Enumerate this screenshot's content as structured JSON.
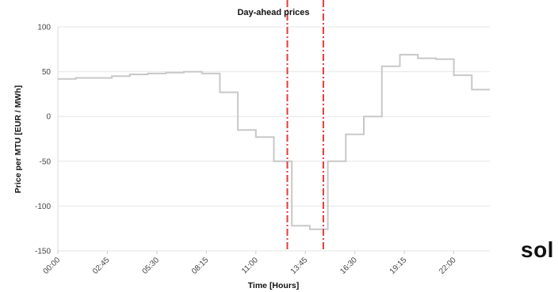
{
  "chart_data": {
    "type": "line",
    "title": "Day-ahead prices",
    "xlabel": "Time [Hours]",
    "ylabel": "Price per MTU [EUR / MWh]",
    "ylim": [
      -150,
      100
    ],
    "xlim_hours": [
      0,
      24
    ],
    "yticks": [
      100,
      50,
      0,
      -50,
      -100,
      -150
    ],
    "xtick_labels": [
      "00:00",
      "02:45",
      "05:30",
      "08:15",
      "11:00",
      "13:45",
      "16:30",
      "19:15",
      "22:00"
    ],
    "xtick_hours": [
      0,
      2.75,
      5.5,
      8.25,
      11,
      13.75,
      16.5,
      19.25,
      22
    ],
    "grid": true,
    "step": true,
    "series": [
      {
        "color": "#c8c8c8",
        "x_hours": [
          0,
          1,
          2,
          3,
          4,
          5,
          6,
          7,
          8,
          9,
          10,
          11,
          12,
          13,
          14,
          15,
          16,
          17,
          18,
          19,
          20,
          21,
          22,
          23
        ],
        "values": [
          42,
          43,
          43,
          45,
          47,
          48,
          49,
          50,
          48,
          27,
          -15,
          -23,
          -50,
          -122,
          -126,
          -50,
          -20,
          0,
          56,
          69,
          65,
          64,
          46,
          30
        ]
      }
    ],
    "highlight_lines": {
      "color": "#e63b3b",
      "style": "dash-dot",
      "x_hours": [
        12.75,
        14.75
      ]
    }
  },
  "brand": {
    "text": "sol"
  }
}
